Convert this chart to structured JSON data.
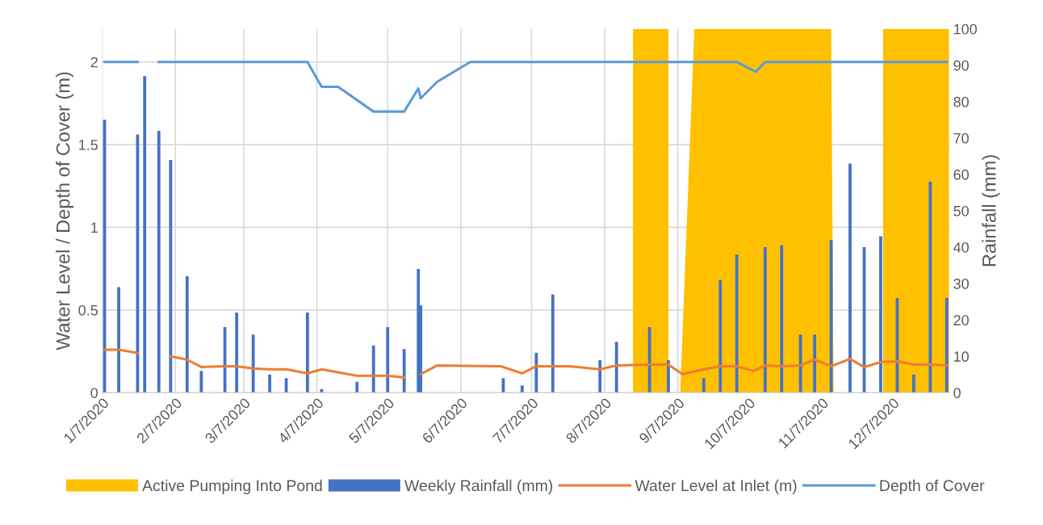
{
  "chart_data": {
    "type": "line",
    "ylabel": "Water Level / Depth of Cover (m)",
    "y2label": "Rainfall (mm)",
    "xlim": [
      "2020-01-07",
      "2020-12-31"
    ],
    "xticks": [
      {
        "value": "2020-01-07",
        "label": "1/7/2020"
      },
      {
        "value": "2020-02-07",
        "label": "2/7/2020"
      },
      {
        "value": "2020-03-07",
        "label": "3/7/2020"
      },
      {
        "value": "2020-04-07",
        "label": "4/7/2020"
      },
      {
        "value": "2020-05-07",
        "label": "5/7/2020"
      },
      {
        "value": "2020-06-07",
        "label": "6/7/2020"
      },
      {
        "value": "2020-07-07",
        "label": "7/7/2020"
      },
      {
        "value": "2020-08-07",
        "label": "8/7/2020"
      },
      {
        "value": "2020-09-07",
        "label": "9/7/2020"
      },
      {
        "value": "2020-10-07",
        "label": "10/7/2020"
      },
      {
        "value": "2020-11-07",
        "label": "11/7/2020"
      },
      {
        "value": "2020-12-07",
        "label": "12/7/2020"
      }
    ],
    "ylim": [
      0,
      2.2
    ],
    "yticks": [
      0,
      0.5,
      1,
      1.5,
      2
    ],
    "y2lim": [
      0,
      100
    ],
    "y2ticks": [
      0,
      10,
      20,
      30,
      40,
      50,
      60,
      70,
      80,
      90,
      100
    ],
    "grid": true,
    "legend": "bottom",
    "series": [
      {
        "name": "Active Pumping Into Pond",
        "type": "area",
        "axis": "y2",
        "color": "#ffc000",
        "x": [
          "2020-08-19",
          "2020-08-19",
          "2020-09-03",
          "2020-09-03",
          "2020-09-08",
          "2020-09-14",
          "2020-11-11",
          "2020-11-12",
          "2020-12-03",
          "2020-12-03",
          "2020-12-31"
        ],
        "values": [
          0,
          100,
          100,
          0,
          0,
          100,
          100,
          0,
          0,
          100,
          100
        ]
      },
      {
        "name": "Weekly Rainfall (mm)",
        "type": "bar",
        "axis": "y2",
        "color": "#4472c4",
        "x": [
          "2020-01-08",
          "2020-01-14",
          "2020-01-22",
          "2020-01-25",
          "2020-01-31",
          "2020-02-05",
          "2020-02-12",
          "2020-02-18",
          "2020-02-28",
          "2020-03-04",
          "2020-03-11",
          "2020-03-18",
          "2020-03-25",
          "2020-04-03",
          "2020-04-09",
          "2020-04-24",
          "2020-05-01",
          "2020-05-07",
          "2020-05-14",
          "2020-05-20",
          "2020-05-21",
          "2020-06-25",
          "2020-07-03",
          "2020-07-09",
          "2020-07-16",
          "2020-08-05",
          "2020-08-12",
          "2020-08-26",
          "2020-09-03",
          "2020-09-18",
          "2020-09-25",
          "2020-10-02",
          "2020-10-14",
          "2020-10-21",
          "2020-10-29",
          "2020-11-04",
          "2020-11-11",
          "2020-11-19",
          "2020-11-25",
          "2020-12-02",
          "2020-12-09",
          "2020-12-16",
          "2020-12-23",
          "2020-12-30"
        ],
        "values": [
          75,
          29,
          71,
          87,
          72,
          64,
          32,
          6,
          18,
          22,
          16,
          5,
          4,
          22,
          1,
          3,
          13,
          18,
          12,
          34,
          24,
          4,
          2,
          11,
          27,
          9,
          14,
          18,
          9,
          4,
          31,
          38,
          40,
          40.5,
          16,
          16,
          42,
          63,
          40,
          43,
          26,
          5,
          58,
          26
        ]
      },
      {
        "name": "Water Level at Inlet (m)",
        "axis": "y",
        "color": "#ed7d31",
        "x": [
          "2020-01-08",
          "2020-01-14",
          "2020-01-22",
          "2020-01-28",
          "2020-02-05",
          "2020-02-12",
          "2020-02-18",
          "2020-02-28",
          "2020-03-04",
          "2020-03-11",
          "2020-03-18",
          "2020-03-25",
          "2020-04-03",
          "2020-04-09",
          "2020-04-24",
          "2020-05-01",
          "2020-05-07",
          "2020-05-14",
          "2020-05-18",
          "2020-05-21",
          "2020-05-28",
          "2020-06-24",
          "2020-07-03",
          "2020-07-09",
          "2020-07-23",
          "2020-08-05",
          "2020-08-12",
          "2020-08-26",
          "2020-09-03",
          "2020-09-09",
          "2020-09-18",
          "2020-09-25",
          "2020-10-02",
          "2020-10-09",
          "2020-10-14",
          "2020-10-21",
          "2020-10-29",
          "2020-11-04",
          "2020-11-11",
          "2020-11-19",
          "2020-11-25",
          "2020-12-02",
          "2020-12-09",
          "2020-12-16",
          "2020-12-23",
          "2020-12-30"
        ],
        "values": [
          0.26,
          0.26,
          0.24,
          null,
          0.22,
          0.2,
          0.155,
          0.16,
          0.16,
          0.146,
          0.141,
          0.141,
          0.117,
          0.141,
          0.102,
          0.102,
          0.102,
          0.092,
          null,
          0.112,
          0.165,
          0.16,
          0.117,
          0.16,
          0.16,
          0.141,
          0.165,
          0.17,
          0.17,
          0.112,
          0.141,
          0.16,
          0.16,
          0.131,
          0.165,
          0.16,
          0.165,
          0.2,
          0.16,
          0.204,
          0.155,
          0.185,
          0.19,
          0.17,
          0.17,
          0.165
        ]
      },
      {
        "name": "Depth of Cover",
        "axis": "y",
        "color": "#5b9bd5",
        "x": [
          "2020-01-08",
          "2020-01-22",
          "2020-01-27",
          "2020-01-31",
          "2020-04-03",
          "2020-04-09",
          "2020-04-16",
          "2020-05-01",
          "2020-05-14",
          "2020-05-20",
          "2020-05-21",
          "2020-05-28",
          "2020-06-11",
          "2020-10-02",
          "2020-10-10",
          "2020-10-14",
          "2020-12-30"
        ],
        "values": [
          2,
          2,
          null,
          2,
          2,
          1.85,
          1.85,
          1.7,
          1.7,
          1.84,
          1.78,
          1.88,
          2,
          2,
          1.94,
          2,
          2
        ]
      }
    ]
  }
}
